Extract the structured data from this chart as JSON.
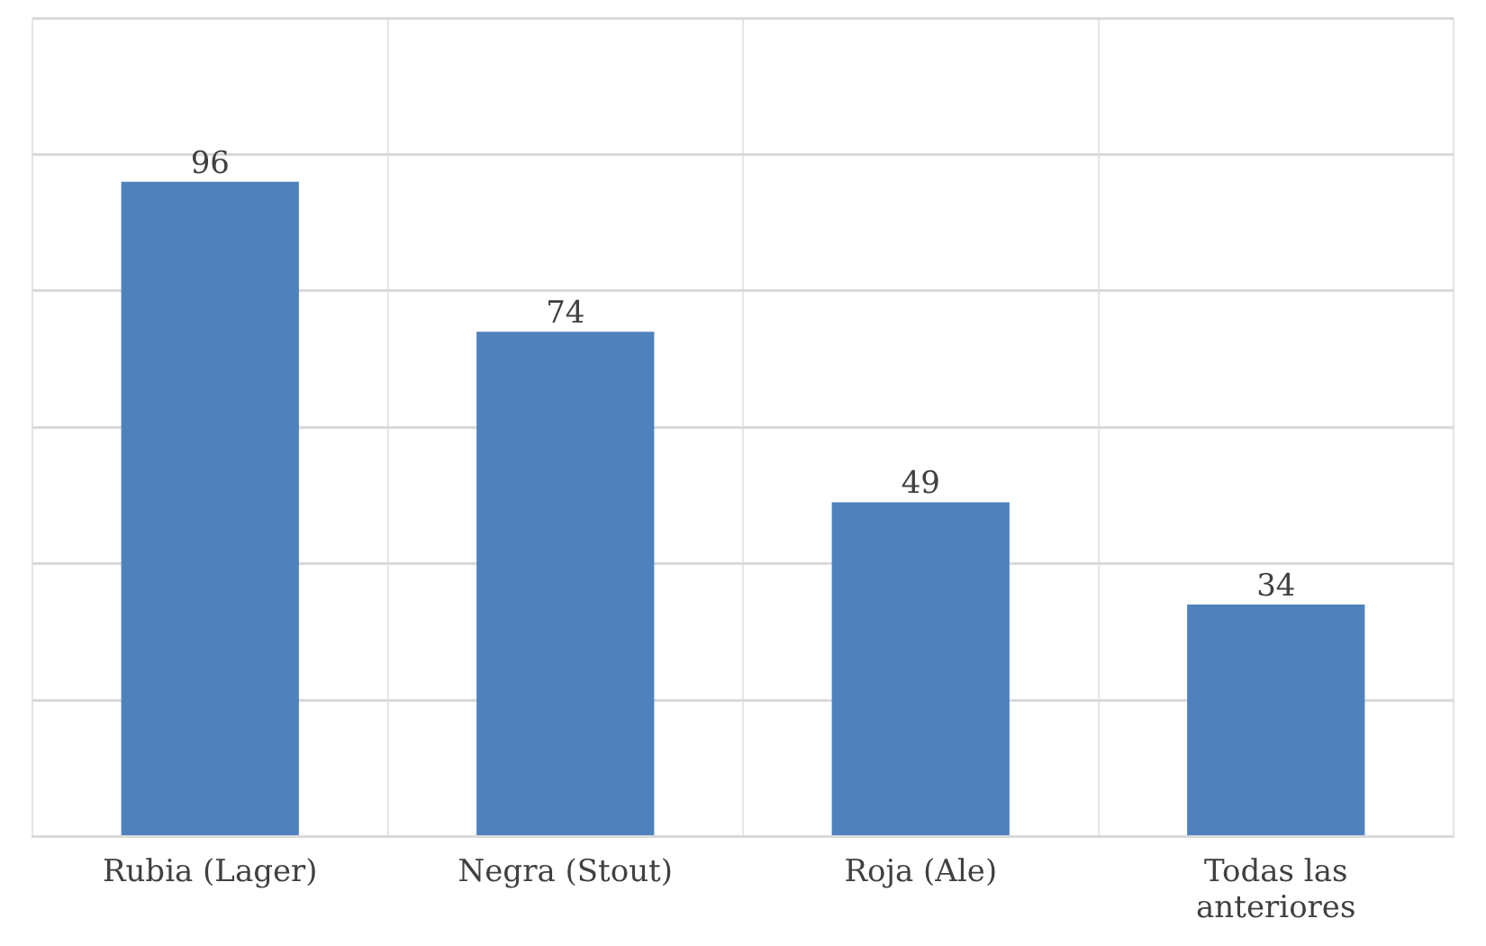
{
  "chart_data": {
    "type": "bar",
    "categories": [
      "Rubia (Lager)",
      "Negra (Stout)",
      "Roja (Ale)",
      "Todas las anteriores"
    ],
    "values": [
      96,
      74,
      49,
      34
    ],
    "color": "#4f81bd",
    "data_labels": true,
    "ylim": [
      0,
      120
    ],
    "yticks": [
      {
        "value": 0,
        "label": null
      },
      {
        "value": 20,
        "label": null
      },
      {
        "value": 40,
        "label": null
      },
      {
        "value": 60,
        "label": null
      },
      {
        "value": 80,
        "label": null
      },
      {
        "value": 100,
        "label": null
      },
      {
        "value": 120,
        "label": null
      }
    ],
    "grid": true,
    "tick_labels": "x",
    "legend": false
  }
}
